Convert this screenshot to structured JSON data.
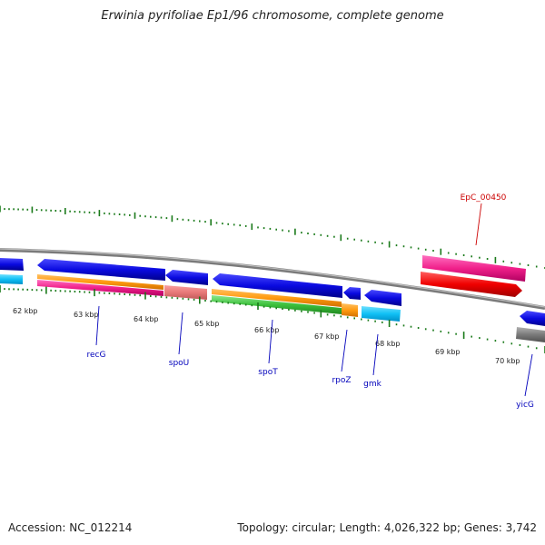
{
  "title": "Erwinia pyrifoliae Ep1/96 chromosome, complete genome",
  "footer": {
    "accession": "Accession: NC_012214",
    "summary": "Topology: circular; Length: 4,026,322 bp; Genes: 3,742"
  },
  "colors": {
    "backbone": "#8c8c8c",
    "tick": "#1a7a1a",
    "cds_forward": "#0a0ae0",
    "gene_label": "#0000bb",
    "highlight_label": "#cc0000",
    "gc_plot": "#1a7a1a"
  },
  "axis_labels": [
    {
      "text": "62 kbp"
    },
    {
      "text": "63 kbp"
    },
    {
      "text": "64 kbp"
    },
    {
      "text": "65 kbp"
    },
    {
      "text": "66 kbp"
    },
    {
      "text": "67 kbp"
    },
    {
      "text": "68 kbp"
    },
    {
      "text": "69 kbp"
    },
    {
      "text": "70 kbp"
    }
  ],
  "gene_labels": [
    {
      "text": "recG",
      "color": "#0000bb"
    },
    {
      "text": "spoU",
      "color": "#0000bb"
    },
    {
      "text": "spoT",
      "color": "#0000bb"
    },
    {
      "text": "rpoZ",
      "color": "#0000bb"
    },
    {
      "text": "gmk",
      "color": "#0000bb"
    },
    {
      "text": "yicG",
      "color": "#0000bb"
    },
    {
      "text": "EpC_00450",
      "color": "#cc0000"
    }
  ]
}
